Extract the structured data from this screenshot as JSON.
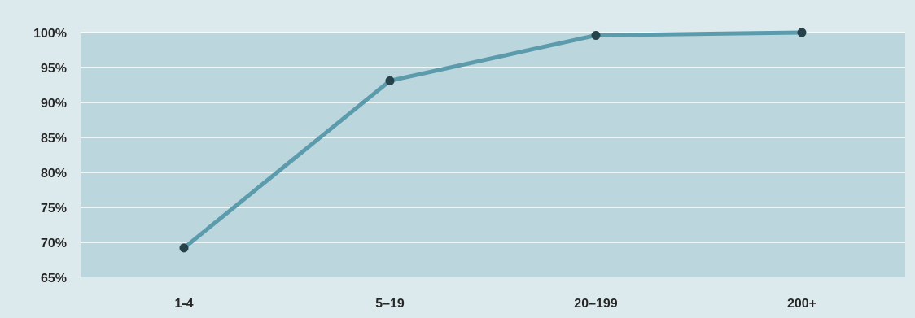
{
  "chart_data": {
    "type": "line",
    "categories": [
      "1-4",
      "5–19",
      "20–199",
      "200+"
    ],
    "series": [
      {
        "values": [
          69.2,
          93.1,
          99.6,
          100.0
        ]
      }
    ],
    "ylim": [
      65,
      100
    ],
    "yticks": [
      65,
      70,
      75,
      80,
      85,
      90,
      95,
      100
    ],
    "ytick_labels": [
      "65%",
      "70%",
      "75%",
      "80%",
      "85%",
      "90%",
      "95%",
      "100%"
    ],
    "title": "",
    "xlabel": "",
    "ylabel": "",
    "grid": "horizontal",
    "legend": "none",
    "colors": {
      "outer_background": "#dceaee",
      "plot_background": "#bcd6de",
      "gridline": "#ffffff",
      "line": "#5b9bab",
      "marker": "#26424b",
      "text": "#262626"
    }
  }
}
